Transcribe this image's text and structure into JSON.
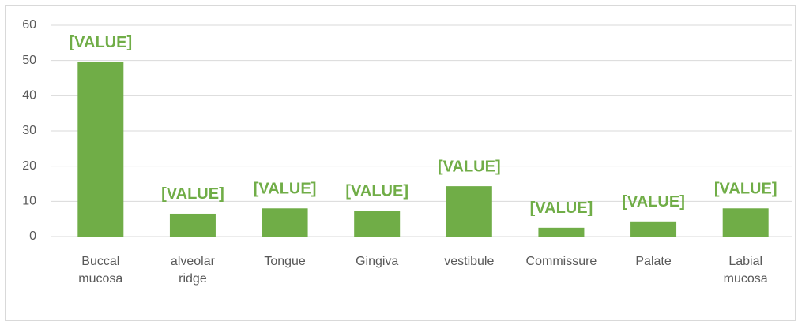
{
  "chart_data": {
    "type": "bar",
    "categories": [
      "Buccal mucosa",
      "alveolar ridge",
      "Tongue",
      "Gingiva",
      "vestibule",
      "Commissure",
      "Palate",
      "Labial mucosa"
    ],
    "values": [
      49.5,
      6.5,
      8,
      7.3,
      14.3,
      2.5,
      4.3,
      8
    ],
    "value_labels": [
      "[VALUE]",
      "[VALUE]",
      "[VALUE]",
      "[VALUE]",
      "[VALUE]",
      "[VALUE]",
      "[VALUE]",
      "[VALUE]"
    ],
    "color": "#70ad47",
    "ylim": [
      0,
      60
    ],
    "yticks": [
      0,
      10,
      20,
      30,
      40,
      50,
      60
    ],
    "grid": true
  }
}
